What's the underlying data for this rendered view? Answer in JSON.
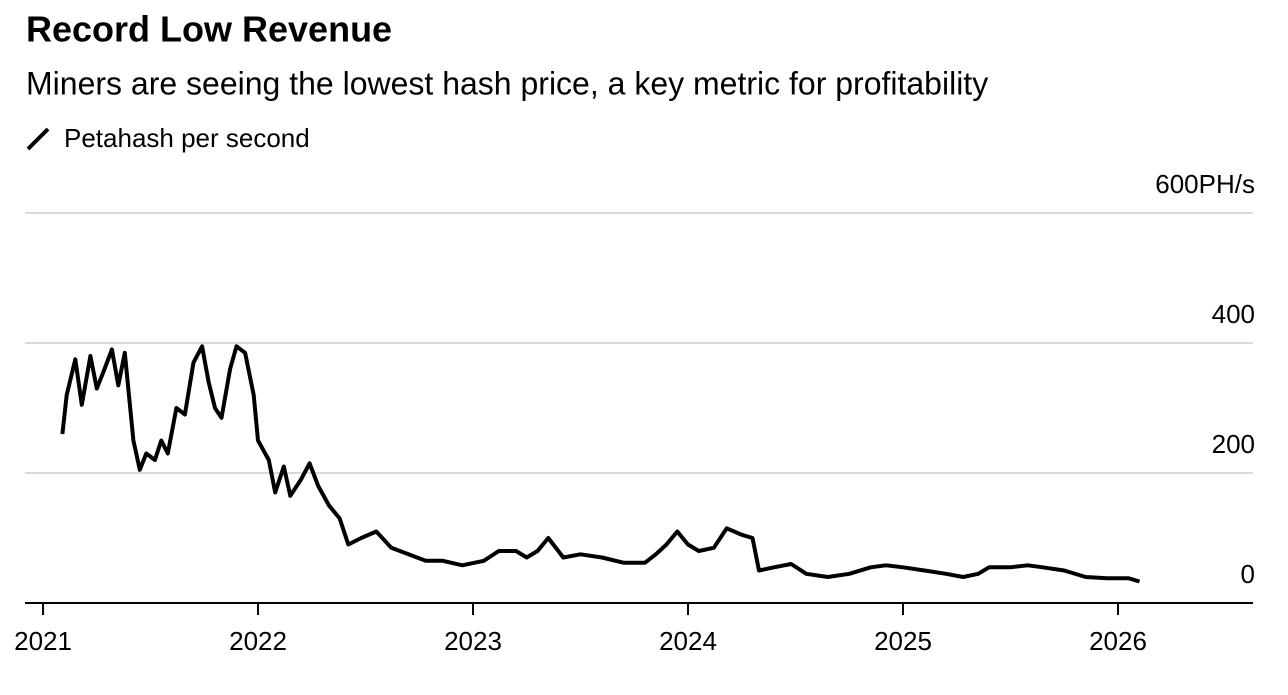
{
  "chart_data": {
    "type": "line",
    "title": "Record Low Revenue",
    "subtitle": "Miners are seeing the lowest hash price, a key metric for profitability",
    "x": [
      2021.09,
      2021.11,
      2021.15,
      2021.18,
      2021.22,
      2021.25,
      2021.28,
      2021.32,
      2021.35,
      2021.38,
      2021.42,
      2021.45,
      2021.48,
      2021.52,
      2021.55,
      2021.58,
      2021.62,
      2021.66,
      2021.7,
      2021.74,
      2021.77,
      2021.8,
      2021.83,
      2021.87,
      2021.9,
      2021.94,
      2021.98,
      2022.0,
      2022.05,
      2022.08,
      2022.12,
      2022.15,
      2022.2,
      2022.24,
      2022.28,
      2022.33,
      2022.38,
      2022.42,
      2022.48,
      2022.55,
      2022.62,
      2022.7,
      2022.78,
      2022.86,
      2022.95,
      2023.05,
      2023.12,
      2023.2,
      2023.25,
      2023.3,
      2023.35,
      2023.42,
      2023.5,
      2023.6,
      2023.7,
      2023.8,
      2023.85,
      2023.9,
      2023.95,
      2024.0,
      2024.05,
      2024.12,
      2024.18,
      2024.25,
      2024.3,
      2024.33,
      2024.4,
      2024.48,
      2024.55,
      2024.65,
      2024.75,
      2024.85,
      2024.92,
      2025.0,
      2025.1,
      2025.2,
      2025.28,
      2025.35,
      2025.4,
      2025.5,
      2025.58,
      2025.65,
      2025.75,
      2025.85,
      2025.95,
      2026.05,
      2026.1
    ],
    "series": [
      {
        "name": "Petahash per second",
        "color": "#000000",
        "values": [
          260,
          320,
          375,
          305,
          380,
          330,
          355,
          390,
          335,
          385,
          250,
          205,
          230,
          220,
          250,
          230,
          300,
          290,
          370,
          395,
          340,
          300,
          285,
          360,
          395,
          385,
          320,
          250,
          220,
          170,
          210,
          165,
          190,
          215,
          180,
          150,
          130,
          90,
          100,
          110,
          85,
          75,
          65,
          65,
          58,
          65,
          80,
          80,
          70,
          80,
          100,
          70,
          75,
          70,
          62,
          62,
          75,
          90,
          110,
          90,
          80,
          85,
          115,
          105,
          100,
          50,
          55,
          60,
          45,
          40,
          45,
          55,
          58,
          55,
          50,
          45,
          40,
          45,
          55,
          55,
          58,
          55,
          50,
          40,
          38,
          38,
          33
        ]
      }
    ],
    "xlim": [
      2020.916,
      2026.628
    ],
    "xticks": [
      2021,
      2022,
      2023,
      2024,
      2025,
      2026
    ],
    "ylim": [
      0,
      600
    ],
    "yticks": [
      0,
      200,
      400,
      {
        "value": 600,
        "label": "600PH/s"
      }
    ],
    "grid": true
  }
}
